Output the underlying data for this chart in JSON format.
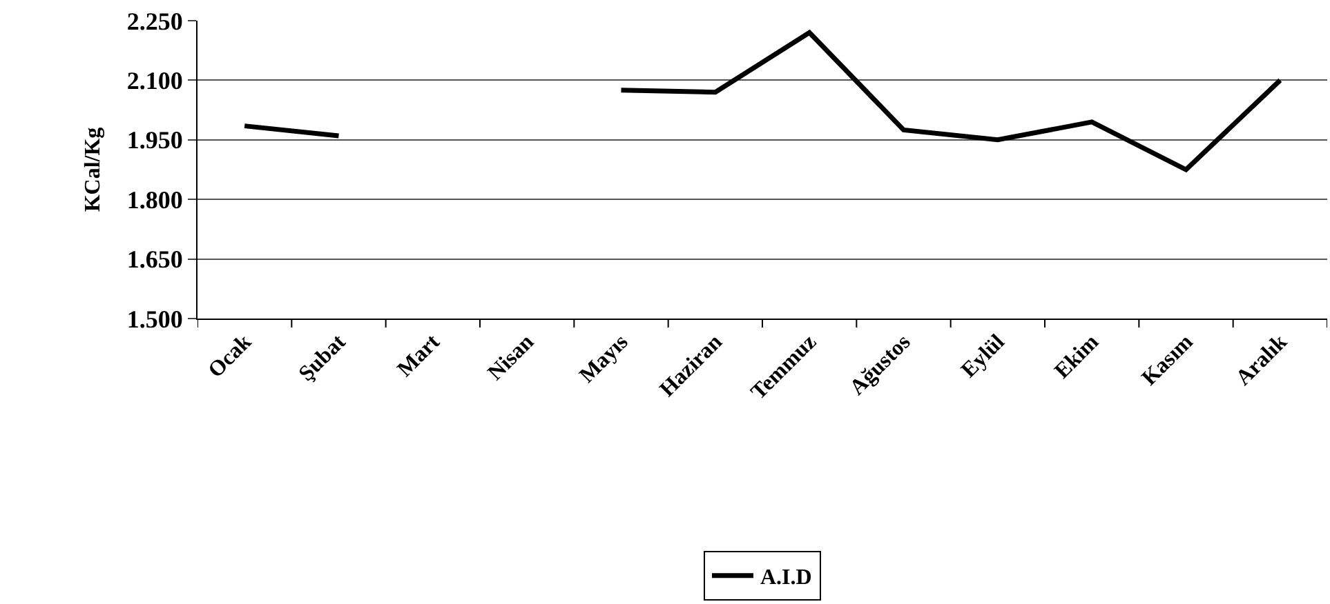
{
  "chart_data": {
    "type": "line",
    "ylabel": "KCal/Kg",
    "categories": [
      "Ocak",
      "Şubat",
      "Mart",
      "Nisan",
      "Mayıs",
      "Haziran",
      "Temmuz",
      "Ağustos",
      "Eylül",
      "Ekim",
      "Kasım",
      "Aralık"
    ],
    "series": [
      {
        "name": "A.I.D",
        "color": "#000000",
        "values": [
          1985,
          1960,
          null,
          null,
          2075,
          2070,
          2220,
          1975,
          1950,
          1995,
          1875,
          2100
        ]
      }
    ],
    "ylim": [
      1500,
      2250
    ],
    "yticks": [
      {
        "value": 1500,
        "label": "1.500"
      },
      {
        "value": 1650,
        "label": "1.650"
      },
      {
        "value": 1800,
        "label": "1.800"
      },
      {
        "value": 1950,
        "label": "1.950"
      },
      {
        "value": 2100,
        "label": "2.100"
      },
      {
        "value": 2250,
        "label": "2.250"
      }
    ],
    "grid": "y",
    "legend": "bottom",
    "marker": "none",
    "line_style": "solid"
  }
}
